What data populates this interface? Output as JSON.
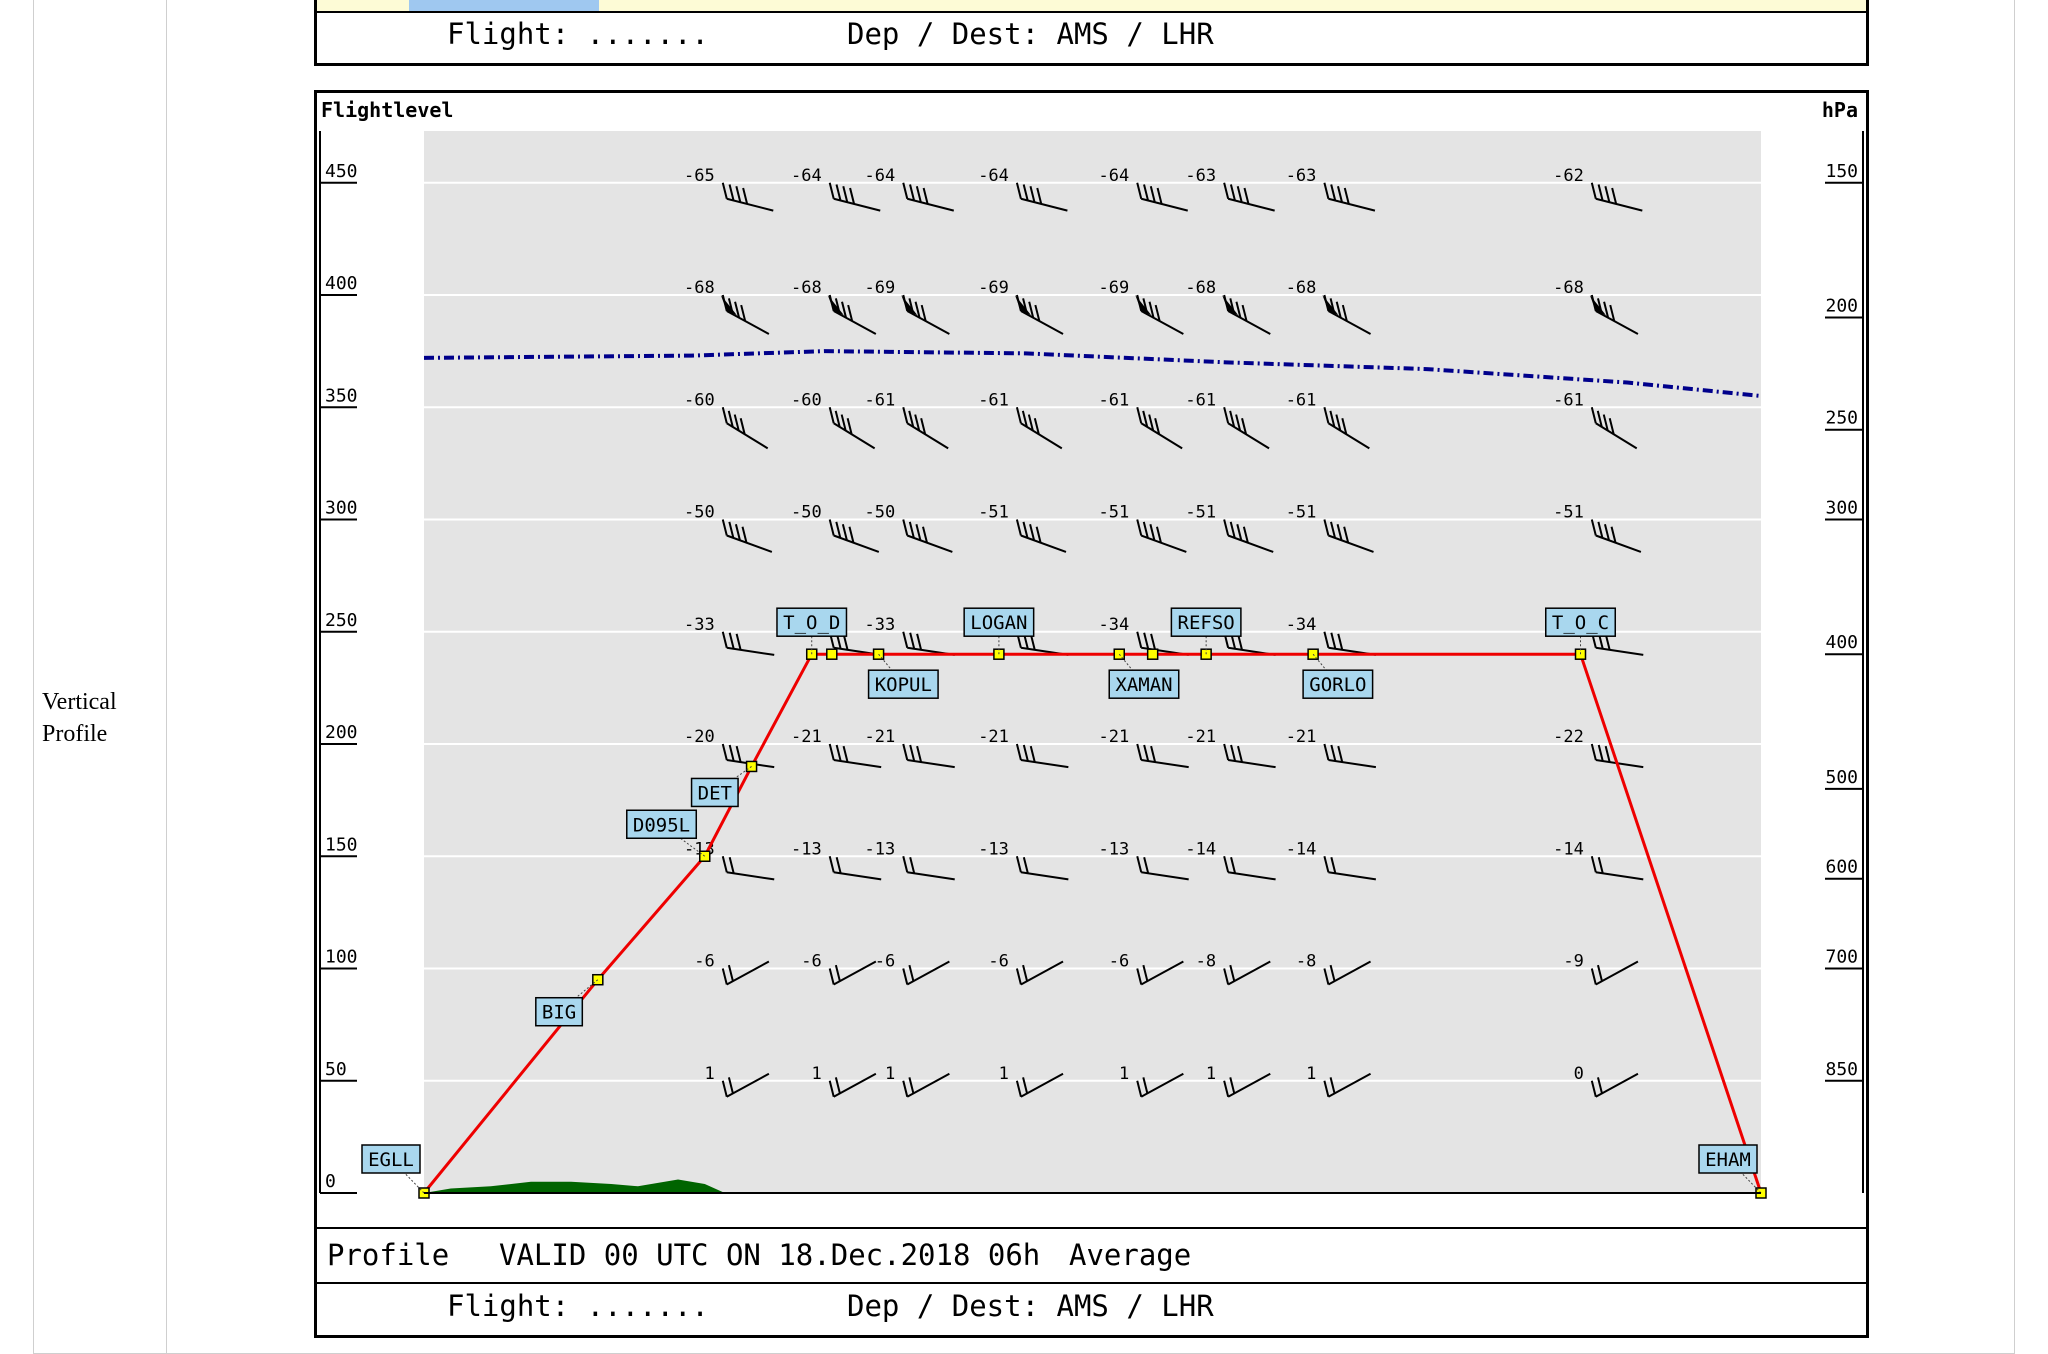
{
  "row_label": "Vertical\nProfile",
  "header": {
    "flight_label": "Flight: .......",
    "dep_dest": "Dep / Dest: AMS / LHR"
  },
  "footer": {
    "profile": "Profile",
    "valid": "VALID 00 UTC ON 18.Dec.2018 06h",
    "average": "Average",
    "flight_label": "Flight: .......",
    "dep_dest": "Dep / Dest: AMS / LHR"
  },
  "chart_data": {
    "type": "line",
    "left_axis_title": "Flightlevel",
    "right_axis_title": "hPa",
    "ylim": [
      0,
      470
    ],
    "y_ticks": [
      0,
      50,
      100,
      150,
      200,
      250,
      300,
      350,
      400,
      450
    ],
    "pressure_ticks": [
      {
        "fl": 50,
        "label": "850"
      },
      {
        "fl": 100,
        "label": "700"
      },
      {
        "fl": 140,
        "label": "600"
      },
      {
        "fl": 180,
        "label": "500"
      },
      {
        "fl": 240,
        "label": "400"
      },
      {
        "fl": 300,
        "label": "300"
      },
      {
        "fl": 340,
        "label": "250"
      },
      {
        "fl": 390,
        "label": "200"
      },
      {
        "fl": 450,
        "label": "150"
      }
    ],
    "profile_color": "#ee0000",
    "tropopause_color": "#00008b",
    "terrain_color": "#006400",
    "waypoints": [
      {
        "name": "EGLL",
        "x": 0,
        "fl": 0,
        "labelled": true,
        "label_pos": "above-left"
      },
      {
        "name": "BIG",
        "x": 13,
        "fl": 95,
        "labelled": true,
        "label_pos": "below-left"
      },
      {
        "name": "D095L",
        "x": 21,
        "fl": 150,
        "labelled": true,
        "label_pos": "above-left"
      },
      {
        "name": "DET",
        "x": 24.5,
        "fl": 190,
        "labelled": true,
        "label_pos": "below-left"
      },
      {
        "name": "T_O_D",
        "x": 29,
        "fl": 240,
        "labelled": true,
        "label_pos": "above"
      },
      {
        "name": "",
        "x": 30.5,
        "fl": 240,
        "labelled": false
      },
      {
        "name": "KOPUL",
        "x": 34,
        "fl": 240,
        "labelled": true,
        "label_pos": "below"
      },
      {
        "name": "LOGAN",
        "x": 43,
        "fl": 240,
        "labelled": true,
        "label_pos": "above"
      },
      {
        "name": "XAMAN",
        "x": 52,
        "fl": 240,
        "labelled": true,
        "label_pos": "below"
      },
      {
        "name": "",
        "x": 54.5,
        "fl": 240,
        "labelled": false
      },
      {
        "name": "REFSO",
        "x": 58.5,
        "fl": 240,
        "labelled": true,
        "label_pos": "above"
      },
      {
        "name": "GORLO",
        "x": 66.5,
        "fl": 240,
        "labelled": true,
        "label_pos": "below"
      },
      {
        "name": "T_O_C",
        "x": 86.5,
        "fl": 240,
        "labelled": true,
        "label_pos": "above"
      },
      {
        "name": "EHAM",
        "x": 100,
        "fl": 0,
        "labelled": true,
        "label_pos": "above-left"
      }
    ],
    "tropopause": [
      {
        "x": 0,
        "fl": 372
      },
      {
        "x": 20,
        "fl": 373
      },
      {
        "x": 30,
        "fl": 375
      },
      {
        "x": 45,
        "fl": 374
      },
      {
        "x": 60,
        "fl": 370
      },
      {
        "x": 75,
        "fl": 367
      },
      {
        "x": 90,
        "fl": 361
      },
      {
        "x": 100,
        "fl": 355
      }
    ],
    "terrain": [
      {
        "x": 0,
        "h": 0
      },
      {
        "x": 2,
        "h": 2
      },
      {
        "x": 5,
        "h": 3
      },
      {
        "x": 8,
        "h": 5
      },
      {
        "x": 11,
        "h": 5
      },
      {
        "x": 14,
        "h": 4
      },
      {
        "x": 16,
        "h": 3
      },
      {
        "x": 19,
        "h": 6
      },
      {
        "x": 21,
        "h": 4
      },
      {
        "x": 22.5,
        "h": 0
      }
    ],
    "wind_columns": [
      {
        "x": 21,
        "temps": [
          "1",
          "-6",
          "-13",
          "-20",
          "-33",
          "-50",
          "-60",
          "-68",
          "-65"
        ]
      },
      {
        "x": 29,
        "temps": [
          "1",
          "-6",
          "-13",
          "-21",
          "-33",
          "-50",
          "-60",
          "-68",
          "-64"
        ]
      },
      {
        "x": 34.5,
        "temps": [
          "1",
          "-6",
          "-13",
          "-21",
          "-33",
          "-50",
          "-61",
          "-69",
          "-64"
        ]
      },
      {
        "x": 43,
        "temps": [
          "1",
          "-6",
          "-13",
          "-21",
          "-34",
          "-51",
          "-61",
          "-69",
          "-64"
        ]
      },
      {
        "x": 52,
        "temps": [
          "1",
          "-6",
          "-13",
          "-21",
          "-34",
          "-51",
          "-61",
          "-69",
          "-64"
        ]
      },
      {
        "x": 58.5,
        "temps": [
          "1",
          "-8",
          "-14",
          "-21",
          "-34",
          "-51",
          "-61",
          "-68",
          "-63"
        ]
      },
      {
        "x": 66,
        "temps": [
          "1",
          "-8",
          "-14",
          "-21",
          "-34",
          "-51",
          "-61",
          "-68",
          "-63"
        ]
      },
      {
        "x": 86,
        "temps": [
          "0",
          "-9",
          "-14",
          "-22",
          "-34",
          "-51",
          "-61",
          "-68",
          "-62"
        ]
      }
    ],
    "wind_levels": [
      50,
      100,
      150,
      200,
      250,
      300,
      350,
      400,
      450
    ]
  }
}
